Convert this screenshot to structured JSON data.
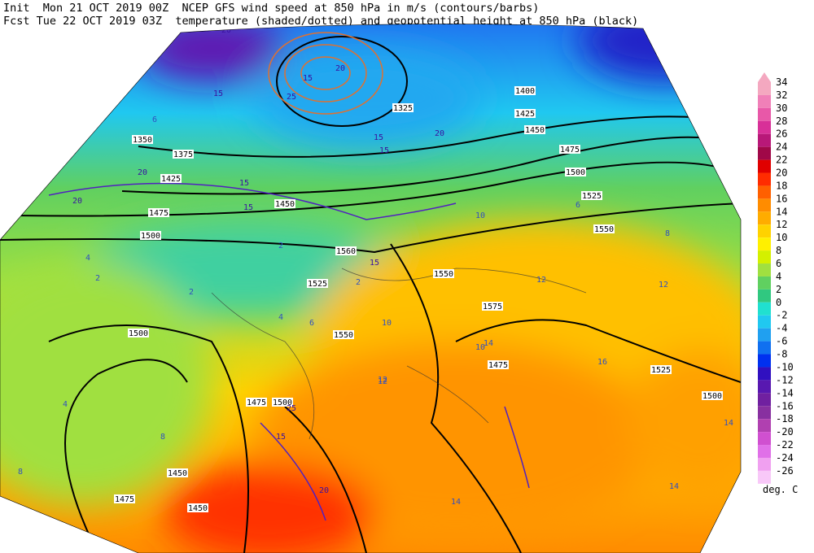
{
  "header": {
    "line1": "Init  Mon 21 OCT 2019 00Z  NCEP GFS wind speed at 850 hPa in m/s (contours/barbs)",
    "line2": "Fcst Tue 22 OCT 2019 03Z  temperature (shaded/dotted) and geopotential height at 850 hPa (black)"
  },
  "colorbar": {
    "levels": [
      "34",
      "32",
      "30",
      "28",
      "26",
      "24",
      "22",
      "20",
      "18",
      "16",
      "14",
      "12",
      "10",
      "8",
      "6",
      "4",
      "2",
      "0",
      "-2",
      "-4",
      "-6",
      "-8",
      "-10",
      "-12",
      "-14",
      "-16",
      "-18",
      "-20",
      "-22",
      "-24",
      "-26"
    ],
    "colors": [
      "#f4a8c0",
      "#f080b8",
      "#e858a8",
      "#d83098",
      "#b81878",
      "#a00848",
      "#e00000",
      "#ff2c00",
      "#ff6000",
      "#ff8c00",
      "#ffac00",
      "#ffd200",
      "#fff000",
      "#d4f000",
      "#a0e040",
      "#60d060",
      "#30c880",
      "#20e0d0",
      "#20c8f0",
      "#20a0f0",
      "#1070f0",
      "#0030f0",
      "#3010c0",
      "#5818b0",
      "#7020a0",
      "#8830a0",
      "#b040b0",
      "#d050d0",
      "#e070e8",
      "#f0a0f0",
      "#f8c8f8"
    ],
    "unit": "deg. C"
  },
  "map": {
    "height_labels": [
      "1350",
      "1375",
      "1425",
      "1450",
      "1475",
      "1500",
      "1325",
      "1400",
      "1425",
      "1450",
      "1475",
      "1500",
      "1525",
      "1550",
      "1550",
      "1560",
      "1525",
      "1575",
      "1550",
      "1475",
      "1525",
      "1500",
      "1500",
      "1475",
      "1500",
      "1450",
      "1475",
      "1450"
    ],
    "wind_labels": [
      "20",
      "15",
      "20",
      "25",
      "15",
      "20",
      "15",
      "20",
      "15",
      "15",
      "15",
      "20",
      "15",
      "20",
      "25",
      "15"
    ],
    "temp_labels": [
      "6",
      "2",
      "4",
      "2",
      "2",
      "2",
      "4",
      "6",
      "8",
      "10",
      "12",
      "10",
      "12",
      "14",
      "12",
      "14",
      "16",
      "10",
      "12",
      "8",
      "4",
      "8",
      "6",
      "14",
      "14"
    ]
  }
}
